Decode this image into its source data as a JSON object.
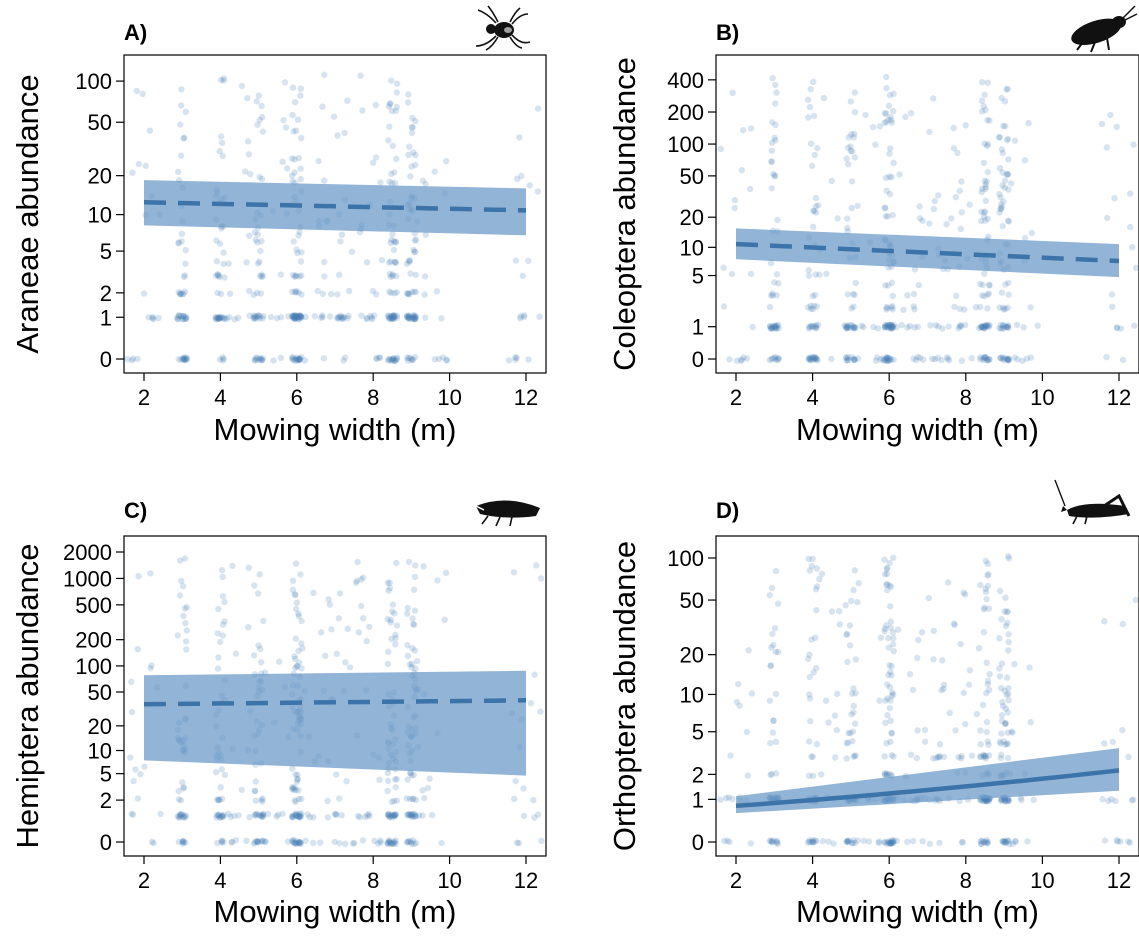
{
  "colors": {
    "points": "#4a7fb5",
    "band": "#6d9bc8",
    "line": "#3c74aa"
  },
  "chart_data": [
    {
      "type": "scatter",
      "panel_label": "A)",
      "icon": "spider-icon",
      "xlabel": "Mowing width (m)",
      "ylabel": "Araneae abundance",
      "xlim": [
        2,
        12
      ],
      "xticks": [
        2,
        4,
        6,
        8,
        10,
        12
      ],
      "yscale": "log1p",
      "yticks": [
        0,
        1,
        2,
        5,
        10,
        20,
        50,
        100
      ],
      "ylim": [
        0,
        140
      ],
      "x_groups": [
        2,
        3,
        4,
        4.5,
        5,
        5.5,
        6,
        6.5,
        7,
        7.5,
        8,
        8.5,
        9,
        9.5,
        12
      ],
      "fit": {
        "x": [
          2,
          12
        ],
        "y": [
          12.5,
          10.8
        ],
        "line": "dashed",
        "band_lower": [
          8.2,
          6.8
        ],
        "band_upper": [
          18.5,
          16.0
        ]
      }
    },
    {
      "type": "scatter",
      "panel_label": "B)",
      "icon": "beetle-icon",
      "xlabel": "Mowing width (m)",
      "ylabel": "Coleoptera abundance",
      "xlim": [
        2,
        12
      ],
      "xticks": [
        2,
        4,
        6,
        8,
        10,
        12
      ],
      "yscale": "log1p",
      "yticks": [
        0,
        1,
        5,
        10,
        20,
        50,
        100,
        200,
        400
      ],
      "ylim": [
        0,
        600
      ],
      "x_groups": [
        2,
        3,
        4,
        4.5,
        5,
        5.5,
        6,
        6.5,
        7,
        7.5,
        8,
        8.5,
        9,
        9.5,
        12
      ],
      "fit": {
        "x": [
          2,
          12
        ],
        "y": [
          10.8,
          7.2
        ],
        "line": "dashed",
        "band_lower": [
          7.5,
          4.8
        ],
        "band_upper": [
          15.5,
          10.8
        ]
      }
    },
    {
      "type": "scatter",
      "panel_label": "C)",
      "icon": "leafhopper-icon",
      "xlabel": "Mowing width (m)",
      "ylabel": "Hemiptera abundance",
      "xlim": [
        2,
        12
      ],
      "xticks": [
        2,
        4,
        6,
        8,
        10,
        12
      ],
      "yscale": "log1p",
      "yticks": [
        0,
        2,
        5,
        10,
        20,
        50,
        100,
        200,
        500,
        1000,
        2000
      ],
      "ylim": [
        0,
        2600
      ],
      "x_groups": [
        2,
        3,
        4,
        4.5,
        5,
        5.5,
        6,
        6.5,
        7,
        7.5,
        8,
        8.5,
        9,
        9.5,
        12
      ],
      "fit": {
        "x": [
          2,
          12
        ],
        "y": [
          36,
          40
        ],
        "line": "dashed",
        "band_lower": [
          7.5,
          4.7
        ],
        "band_upper": [
          78,
          88
        ]
      }
    },
    {
      "type": "scatter",
      "panel_label": "D)",
      "icon": "grasshopper-icon",
      "xlabel": "Mowing width (m)",
      "ylabel": "Orthoptera abundance",
      "xlim": [
        2,
        12
      ],
      "xticks": [
        2,
        4,
        6,
        8,
        10,
        12
      ],
      "yscale": "log1p",
      "yticks": [
        0,
        1,
        2,
        5,
        10,
        20,
        50,
        100
      ],
      "ylim": [
        0,
        130
      ],
      "x_groups": [
        2,
        3,
        4,
        4.5,
        5,
        5.5,
        6,
        6.5,
        7,
        7.5,
        8,
        8.5,
        9,
        9.5,
        12
      ],
      "fit": {
        "x": [
          2,
          12
        ],
        "y": [
          0.8,
          2.2
        ],
        "line": "solid",
        "band_lower": [
          0.6,
          1.3
        ],
        "band_upper": [
          1.1,
          3.6
        ]
      }
    }
  ]
}
